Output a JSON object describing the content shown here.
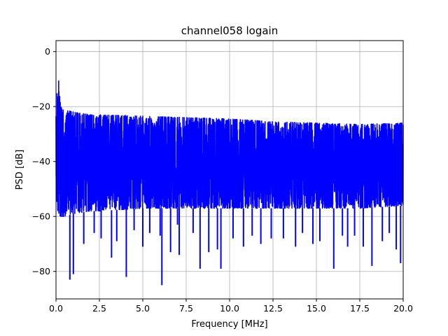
{
  "chart_data": {
    "type": "line",
    "title": "channel058 logain",
    "xlabel": "Frequency [MHz]",
    "ylabel": "PSD [dB]",
    "xlim": [
      0,
      20
    ],
    "ylim": [
      -90,
      4
    ],
    "grid": true,
    "x_ticks": [
      0,
      2.5,
      5,
      7.5,
      10,
      12.5,
      15,
      17.5,
      20
    ],
    "x_tick_labels": [
      "0.0",
      "2.5",
      "5.0",
      "7.5",
      "10.0",
      "12.5",
      "15.0",
      "17.5",
      "20.0"
    ],
    "y_ticks": [
      -80,
      -60,
      -40,
      -20,
      0
    ],
    "y_tick_labels": [
      "−80",
      "−60",
      "−40",
      "−20",
      "0"
    ],
    "series": [
      {
        "color": "#0000ff",
        "envelope": {
          "x": [
            0.0,
            0.05,
            0.1,
            0.15,
            0.2,
            0.25,
            0.3,
            0.5,
            1.0,
            2.0,
            2.5,
            5.0,
            7.5,
            10.0,
            12.5,
            15.0,
            17.5,
            20.0
          ],
          "upper": [
            -22,
            -14,
            -17,
            -10,
            -12,
            -19,
            -20,
            -21,
            -22,
            -23,
            -23,
            -23.5,
            -24,
            -24.5,
            -25.5,
            -26,
            -26.5,
            -26
          ],
          "lower": [
            -55,
            -57,
            -58,
            -59,
            -60,
            -60,
            -60,
            -60,
            -59,
            -58,
            -58,
            -57,
            -57,
            -57,
            -57,
            -57,
            -57,
            -56
          ]
        },
        "dips": [
          [
            0.8,
            -83
          ],
          [
            1.0,
            -81
          ],
          [
            1.6,
            -70
          ],
          [
            2.2,
            -66
          ],
          [
            2.6,
            -68
          ],
          [
            3.2,
            -75
          ],
          [
            3.5,
            -69
          ],
          [
            4.05,
            -82
          ],
          [
            4.5,
            -65
          ],
          [
            5.0,
            -71
          ],
          [
            5.4,
            -66
          ],
          [
            6.0,
            -67
          ],
          [
            6.1,
            -85
          ],
          [
            6.6,
            -73
          ],
          [
            7.0,
            -63
          ],
          [
            7.1,
            -74
          ],
          [
            7.9,
            -66
          ],
          [
            8.3,
            -79
          ],
          [
            8.8,
            -73
          ],
          [
            9.3,
            -72
          ],
          [
            9.5,
            -79
          ],
          [
            10.2,
            -68
          ],
          [
            10.8,
            -71
          ],
          [
            11.3,
            -67
          ],
          [
            11.8,
            -70
          ],
          [
            12.4,
            -68
          ],
          [
            13.1,
            -68
          ],
          [
            13.8,
            -71
          ],
          [
            14.2,
            -66
          ],
          [
            14.8,
            -70
          ],
          [
            15.2,
            -69
          ],
          [
            16.0,
            -79
          ],
          [
            16.5,
            -67
          ],
          [
            16.8,
            -71
          ],
          [
            17.2,
            -67
          ],
          [
            17.7,
            -71
          ],
          [
            18.2,
            -78
          ],
          [
            18.8,
            -69
          ],
          [
            19.2,
            -66
          ],
          [
            19.6,
            -72
          ],
          [
            19.85,
            -77
          ]
        ]
      }
    ]
  }
}
